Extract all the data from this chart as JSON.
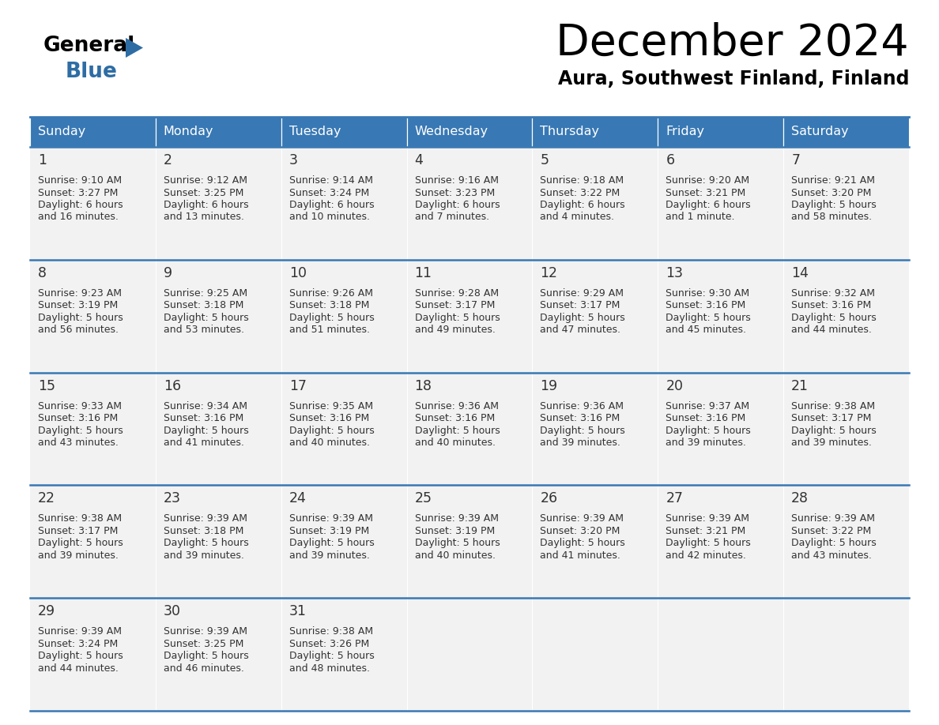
{
  "title": "December 2024",
  "subtitle": "Aura, Southwest Finland, Finland",
  "header_color": "#3878b4",
  "header_text_color": "#ffffff",
  "day_names": [
    "Sunday",
    "Monday",
    "Tuesday",
    "Wednesday",
    "Thursday",
    "Friday",
    "Saturday"
  ],
  "cell_bg": "#f2f2f2",
  "border_color": "#3878b4",
  "text_color": "#333333",
  "calendar_data": [
    [
      {
        "day": 1,
        "sunrise": "9:10 AM",
        "sunset": "3:27 PM",
        "daylight": "6 hours",
        "daylight2": "and 16 minutes."
      },
      {
        "day": 2,
        "sunrise": "9:12 AM",
        "sunset": "3:25 PM",
        "daylight": "6 hours",
        "daylight2": "and 13 minutes."
      },
      {
        "day": 3,
        "sunrise": "9:14 AM",
        "sunset": "3:24 PM",
        "daylight": "6 hours",
        "daylight2": "and 10 minutes."
      },
      {
        "day": 4,
        "sunrise": "9:16 AM",
        "sunset": "3:23 PM",
        "daylight": "6 hours",
        "daylight2": "and 7 minutes."
      },
      {
        "day": 5,
        "sunrise": "9:18 AM",
        "sunset": "3:22 PM",
        "daylight": "6 hours",
        "daylight2": "and 4 minutes."
      },
      {
        "day": 6,
        "sunrise": "9:20 AM",
        "sunset": "3:21 PM",
        "daylight": "6 hours",
        "daylight2": "and 1 minute."
      },
      {
        "day": 7,
        "sunrise": "9:21 AM",
        "sunset": "3:20 PM",
        "daylight": "5 hours",
        "daylight2": "and 58 minutes."
      }
    ],
    [
      {
        "day": 8,
        "sunrise": "9:23 AM",
        "sunset": "3:19 PM",
        "daylight": "5 hours",
        "daylight2": "and 56 minutes."
      },
      {
        "day": 9,
        "sunrise": "9:25 AM",
        "sunset": "3:18 PM",
        "daylight": "5 hours",
        "daylight2": "and 53 minutes."
      },
      {
        "day": 10,
        "sunrise": "9:26 AM",
        "sunset": "3:18 PM",
        "daylight": "5 hours",
        "daylight2": "and 51 minutes."
      },
      {
        "day": 11,
        "sunrise": "9:28 AM",
        "sunset": "3:17 PM",
        "daylight": "5 hours",
        "daylight2": "and 49 minutes."
      },
      {
        "day": 12,
        "sunrise": "9:29 AM",
        "sunset": "3:17 PM",
        "daylight": "5 hours",
        "daylight2": "and 47 minutes."
      },
      {
        "day": 13,
        "sunrise": "9:30 AM",
        "sunset": "3:16 PM",
        "daylight": "5 hours",
        "daylight2": "and 45 minutes."
      },
      {
        "day": 14,
        "sunrise": "9:32 AM",
        "sunset": "3:16 PM",
        "daylight": "5 hours",
        "daylight2": "and 44 minutes."
      }
    ],
    [
      {
        "day": 15,
        "sunrise": "9:33 AM",
        "sunset": "3:16 PM",
        "daylight": "5 hours",
        "daylight2": "and 43 minutes."
      },
      {
        "day": 16,
        "sunrise": "9:34 AM",
        "sunset": "3:16 PM",
        "daylight": "5 hours",
        "daylight2": "and 41 minutes."
      },
      {
        "day": 17,
        "sunrise": "9:35 AM",
        "sunset": "3:16 PM",
        "daylight": "5 hours",
        "daylight2": "and 40 minutes."
      },
      {
        "day": 18,
        "sunrise": "9:36 AM",
        "sunset": "3:16 PM",
        "daylight": "5 hours",
        "daylight2": "and 40 minutes."
      },
      {
        "day": 19,
        "sunrise": "9:36 AM",
        "sunset": "3:16 PM",
        "daylight": "5 hours",
        "daylight2": "and 39 minutes."
      },
      {
        "day": 20,
        "sunrise": "9:37 AM",
        "sunset": "3:16 PM",
        "daylight": "5 hours",
        "daylight2": "and 39 minutes."
      },
      {
        "day": 21,
        "sunrise": "9:38 AM",
        "sunset": "3:17 PM",
        "daylight": "5 hours",
        "daylight2": "and 39 minutes."
      }
    ],
    [
      {
        "day": 22,
        "sunrise": "9:38 AM",
        "sunset": "3:17 PM",
        "daylight": "5 hours",
        "daylight2": "and 39 minutes."
      },
      {
        "day": 23,
        "sunrise": "9:39 AM",
        "sunset": "3:18 PM",
        "daylight": "5 hours",
        "daylight2": "and 39 minutes."
      },
      {
        "day": 24,
        "sunrise": "9:39 AM",
        "sunset": "3:19 PM",
        "daylight": "5 hours",
        "daylight2": "and 39 minutes."
      },
      {
        "day": 25,
        "sunrise": "9:39 AM",
        "sunset": "3:19 PM",
        "daylight": "5 hours",
        "daylight2": "and 40 minutes."
      },
      {
        "day": 26,
        "sunrise": "9:39 AM",
        "sunset": "3:20 PM",
        "daylight": "5 hours",
        "daylight2": "and 41 minutes."
      },
      {
        "day": 27,
        "sunrise": "9:39 AM",
        "sunset": "3:21 PM",
        "daylight": "5 hours",
        "daylight2": "and 42 minutes."
      },
      {
        "day": 28,
        "sunrise": "9:39 AM",
        "sunset": "3:22 PM",
        "daylight": "5 hours",
        "daylight2": "and 43 minutes."
      }
    ],
    [
      {
        "day": 29,
        "sunrise": "9:39 AM",
        "sunset": "3:24 PM",
        "daylight": "5 hours",
        "daylight2": "and 44 minutes."
      },
      {
        "day": 30,
        "sunrise": "9:39 AM",
        "sunset": "3:25 PM",
        "daylight": "5 hours",
        "daylight2": "and 46 minutes."
      },
      {
        "day": 31,
        "sunrise": "9:38 AM",
        "sunset": "3:26 PM",
        "daylight": "5 hours",
        "daylight2": "and 48 minutes."
      },
      null,
      null,
      null,
      null
    ]
  ]
}
